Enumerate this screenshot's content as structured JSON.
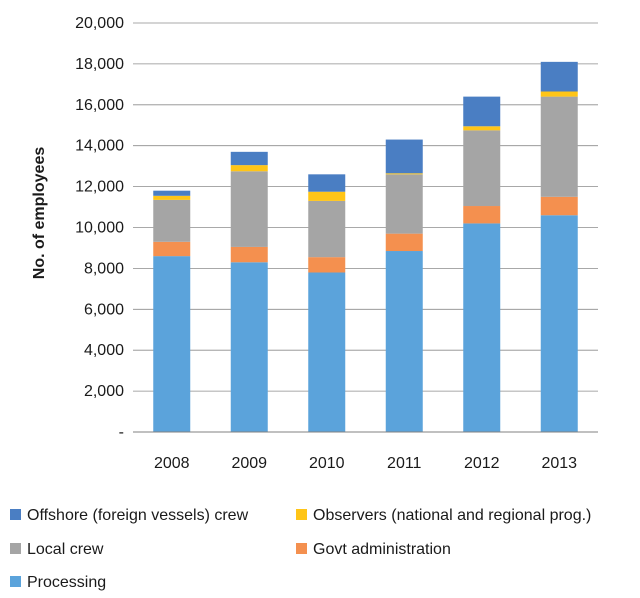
{
  "chart_data": {
    "type": "bar",
    "stacked": true,
    "title": "",
    "xlabel": "",
    "ylabel": "No. of employees",
    "ylim": [
      0,
      20000
    ],
    "yticks": [
      0,
      2000,
      4000,
      6000,
      8000,
      10000,
      12000,
      14000,
      16000,
      18000,
      20000
    ],
    "ytick_labels": [
      "-",
      "2,000",
      "4,000",
      "6,000",
      "8,000",
      "10,000",
      "12,000",
      "14,000",
      "16,000",
      "18,000",
      "20,000"
    ],
    "categories": [
      "2008",
      "2009",
      "2010",
      "2011",
      "2012",
      "2013"
    ],
    "grid": true,
    "legend_position": "bottom",
    "series": [
      {
        "name": "Processing",
        "color": "#5BA3DB",
        "values": [
          8600,
          8300,
          7800,
          8850,
          10200,
          10600
        ]
      },
      {
        "name": "Govt administration",
        "color": "#F4904F",
        "values": [
          700,
          750,
          750,
          850,
          850,
          900
        ]
      },
      {
        "name": "Local crew",
        "color": "#A5A5A5",
        "values": [
          2050,
          3700,
          2750,
          2900,
          3700,
          4900
        ]
      },
      {
        "name": "Observers (national and regional prog.)",
        "color": "#FFC517",
        "values": [
          200,
          300,
          450,
          50,
          200,
          250
        ]
      },
      {
        "name": "Offshore (foreign vessels) crew",
        "color": "#4A7EC3",
        "values": [
          250,
          650,
          850,
          1650,
          1450,
          1450
        ]
      }
    ],
    "legend_order": [
      "Offshore (foreign vessels) crew",
      "Observers (national and regional prog.)",
      "Local crew",
      "Govt administration",
      "Processing"
    ]
  }
}
